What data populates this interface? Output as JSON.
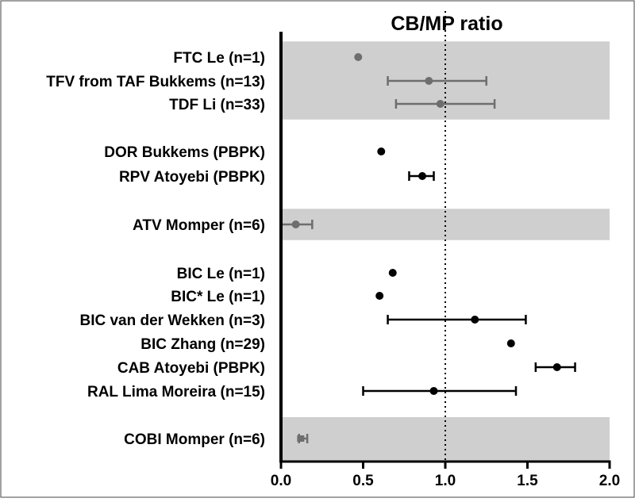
{
  "chart_data": {
    "type": "forest",
    "title": "CB/MP ratio",
    "xlabel": "",
    "ylabel": "",
    "xlim": [
      0.0,
      2.0
    ],
    "xticks": [
      0.0,
      0.5,
      1.0,
      1.5,
      2.0
    ],
    "xtick_labels": [
      "0.0",
      "0.5",
      "1.0",
      "1.5",
      "2.0"
    ],
    "reference_line": 1.0,
    "rows": [
      {
        "label": "FTC Le (n=1)",
        "value": 0.47,
        "low": null,
        "high": null,
        "color": "#6e6e6e",
        "marker": "circle"
      },
      {
        "label": "TFV from TAF Bukkems (n=13)",
        "value": 0.9,
        "low": 0.65,
        "high": 1.25,
        "color": "#6e6e6e",
        "marker": "circle"
      },
      {
        "label": "TDF Li (n=33)",
        "value": 0.97,
        "low": 0.7,
        "high": 1.3,
        "color": "#6e6e6e",
        "marker": "circle"
      },
      {
        "label": "DOR Bukkems (PBPK)",
        "value": 0.61,
        "low": null,
        "high": null,
        "color": "#000000",
        "marker": "circle"
      },
      {
        "label": "RPV Atoyebi (PBPK)",
        "value": 0.86,
        "low": 0.78,
        "high": 0.93,
        "color": "#000000",
        "marker": "circle"
      },
      {
        "label": "ATV Momper (n=6)",
        "value": 0.09,
        "low": 0.0,
        "high": 0.19,
        "color": "#6e6e6e",
        "marker": "circle"
      },
      {
        "label": "BIC Le (n=1)",
        "value": 0.68,
        "low": null,
        "high": null,
        "color": "#000000",
        "marker": "circle"
      },
      {
        "label": "BIC* Le (n=1)",
        "value": 0.6,
        "low": null,
        "high": null,
        "color": "#000000",
        "marker": "circle"
      },
      {
        "label": "BIC van der Wekken (n=3)",
        "value": 1.18,
        "low": 0.65,
        "high": 1.49,
        "color": "#000000",
        "marker": "circle"
      },
      {
        "label": "BIC Zhang (n=29)",
        "value": 1.4,
        "low": null,
        "high": null,
        "color": "#000000",
        "marker": "circle"
      },
      {
        "label": "CAB Atoyebi (PBPK)",
        "value": 1.68,
        "low": 1.55,
        "high": 1.79,
        "color": "#000000",
        "marker": "circle"
      },
      {
        "label": "RAL Lima Moreira (n=15)",
        "value": 0.93,
        "low": 0.5,
        "high": 1.43,
        "color": "#000000",
        "marker": "circle"
      },
      {
        "label": "COBI Momper (n=6)",
        "value": 0.12,
        "low": 0.11,
        "high": 0.16,
        "color": "#6e6e6e",
        "marker": "square"
      }
    ],
    "shaded_bands": [
      [
        0,
        2
      ],
      [
        5,
        5
      ],
      [
        12,
        12
      ]
    ],
    "grid": false,
    "legend": "none"
  }
}
